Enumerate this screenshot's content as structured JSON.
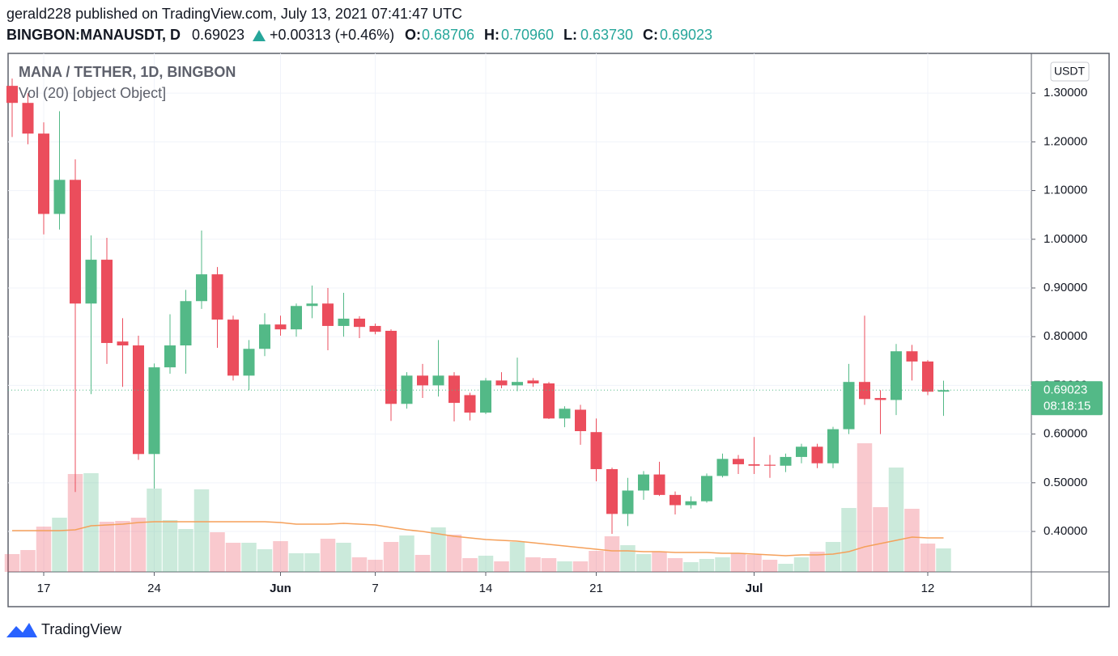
{
  "header": {
    "line1": "gerald228 published on TradingView.com, July 13, 2021 07:41:47 UTC",
    "symbol": "BINGBON:MANAUSDT, D",
    "last": "0.69023",
    "change": "+0.00313 (+0.46%)",
    "ohlc": [
      {
        "label": "O:",
        "value": "0.68706"
      },
      {
        "label": "H:",
        "value": "0.70960"
      },
      {
        "label": "L:",
        "value": "0.63730"
      },
      {
        "label": "C:",
        "value": "0.69023"
      }
    ]
  },
  "chart_data": {
    "type": "candlestick",
    "title": "MANA / TETHER, 1D, BINGBON",
    "indicator": "Vol (20) [object Object]",
    "currency": "USDT",
    "up_color": "#53b987",
    "down_color": "#eb4d5c",
    "ma_color": "#f5a05a",
    "grid": true,
    "x": [
      "05-15",
      "05-16",
      "05-17",
      "05-18",
      "05-19",
      "05-20",
      "05-21",
      "05-22",
      "05-23",
      "05-24",
      "05-25",
      "05-26",
      "05-27",
      "05-28",
      "05-29",
      "05-30",
      "05-31",
      "06-01",
      "06-02",
      "06-03",
      "06-04",
      "06-05",
      "06-06",
      "06-07",
      "06-08",
      "06-09",
      "06-10",
      "06-11",
      "06-12",
      "06-13",
      "06-14",
      "06-15",
      "06-16",
      "06-17",
      "06-18",
      "06-19",
      "06-20",
      "06-21",
      "06-22",
      "06-23",
      "06-24",
      "06-25",
      "06-26",
      "06-27",
      "06-28",
      "06-29",
      "06-30",
      "07-01",
      "07-02",
      "07-03",
      "07-04",
      "07-05",
      "07-06",
      "07-07",
      "07-08",
      "07-09",
      "07-10",
      "07-11",
      "07-12",
      "07-13"
    ],
    "open": [
      1.315,
      1.28,
      1.217,
      1.052,
      1.122,
      0.868,
      0.958,
      0.79,
      0.782,
      0.559,
      0.737,
      0.782,
      0.873,
      0.928,
      0.835,
      0.72,
      0.775,
      0.825,
      0.815,
      0.863,
      0.868,
      0.822,
      0.837,
      0.822,
      0.812,
      0.662,
      0.72,
      0.7,
      0.72,
      0.68,
      0.644,
      0.71,
      0.7,
      0.71,
      0.704,
      0.632,
      0.65,
      0.604,
      0.528,
      0.436,
      0.484,
      0.517,
      0.475,
      0.454,
      0.462,
      0.514,
      0.549,
      0.538,
      0.537,
      0.535,
      0.553,
      0.574,
      0.54,
      0.61,
      0.707,
      0.674,
      0.67,
      0.77,
      0.749,
      0.68706
    ],
    "high": [
      1.33,
      1.3,
      1.24,
      1.263,
      1.164,
      1.008,
      1.003,
      0.838,
      0.802,
      0.745,
      0.846,
      0.896,
      1.018,
      0.943,
      0.843,
      0.793,
      0.848,
      0.843,
      0.868,
      0.905,
      0.9,
      0.89,
      0.842,
      0.827,
      0.815,
      0.727,
      0.744,
      0.793,
      0.727,
      0.685,
      0.715,
      0.727,
      0.757,
      0.715,
      0.707,
      0.657,
      0.66,
      0.632,
      0.531,
      0.51,
      0.524,
      0.543,
      0.482,
      0.472,
      0.519,
      0.56,
      0.557,
      0.594,
      0.557,
      0.56,
      0.58,
      0.58,
      0.615,
      0.744,
      0.843,
      0.69,
      0.785,
      0.783,
      0.752,
      0.7096
    ],
    "low": [
      1.21,
      1.195,
      1.01,
      1.02,
      0.481,
      0.682,
      0.744,
      0.697,
      0.547,
      0.488,
      0.724,
      0.724,
      0.857,
      0.777,
      0.71,
      0.69,
      0.76,
      0.802,
      0.8,
      0.838,
      0.772,
      0.8,
      0.797,
      0.805,
      0.627,
      0.652,
      0.674,
      0.677,
      0.626,
      0.628,
      0.641,
      0.694,
      0.688,
      0.697,
      0.631,
      0.614,
      0.578,
      0.503,
      0.395,
      0.411,
      0.465,
      0.473,
      0.435,
      0.447,
      0.459,
      0.511,
      0.518,
      0.518,
      0.51,
      0.522,
      0.54,
      0.53,
      0.53,
      0.6,
      0.66,
      0.6,
      0.639,
      0.71,
      0.68,
      0.6373
    ],
    "close": [
      1.28,
      1.217,
      1.052,
      1.122,
      0.868,
      0.958,
      0.787,
      0.782,
      0.559,
      0.737,
      0.782,
      0.873,
      0.928,
      0.835,
      0.72,
      0.775,
      0.825,
      0.815,
      0.863,
      0.868,
      0.822,
      0.837,
      0.82,
      0.81,
      0.662,
      0.72,
      0.7,
      0.72,
      0.664,
      0.644,
      0.71,
      0.7,
      0.707,
      0.704,
      0.632,
      0.652,
      0.606,
      0.528,
      0.436,
      0.484,
      0.517,
      0.475,
      0.454,
      0.462,
      0.514,
      0.549,
      0.538,
      0.535,
      0.535,
      0.553,
      0.574,
      0.54,
      0.61,
      0.707,
      0.672,
      0.67,
      0.77,
      0.749,
      0.687,
      0.69023
    ],
    "volume": [
      22,
      27,
      56,
      67,
      121,
      122,
      62,
      63,
      67,
      103,
      64,
      53,
      102,
      49,
      36,
      36,
      28,
      38,
      23,
      23,
      41,
      36,
      18,
      15,
      37,
      45,
      21,
      55,
      46,
      17,
      20,
      13,
      37,
      18,
      17,
      13,
      13,
      26,
      44,
      33,
      22,
      25,
      17,
      12,
      16,
      18,
      23,
      21,
      15,
      10,
      18,
      25,
      37,
      79,
      159,
      80,
      129,
      78,
      35,
      29
    ],
    "volume_ma": [
      51,
      51,
      51,
      51,
      52,
      57,
      58,
      59,
      61,
      62,
      62,
      62,
      62,
      62,
      62,
      62,
      62,
      61,
      59,
      59,
      59,
      60,
      59,
      58,
      55,
      52,
      50,
      47,
      44,
      42,
      40,
      39,
      38,
      36,
      34,
      32,
      30,
      28,
      26,
      26,
      25,
      25,
      24,
      24,
      24,
      23,
      23,
      22,
      21,
      20,
      21,
      21,
      22,
      25,
      31,
      35,
      39,
      43,
      42,
      42
    ],
    "ylim": [
      0.317,
      1.38
    ],
    "yticks": [
      {
        "value": 1.3,
        "label": "1.30000"
      },
      {
        "value": 1.2,
        "label": "1.20000"
      },
      {
        "value": 1.1,
        "label": "1.10000"
      },
      {
        "value": 1.0,
        "label": "1.00000"
      },
      {
        "value": 0.9,
        "label": "0.90000"
      },
      {
        "value": 0.8,
        "label": "0.80000"
      },
      {
        "value": 0.7,
        "label": "0.70000"
      },
      {
        "value": 0.6,
        "label": "0.60000"
      },
      {
        "value": 0.5,
        "label": "0.50000"
      },
      {
        "value": 0.4,
        "label": "0.40000"
      }
    ],
    "xticks": [
      {
        "value": "05-17",
        "label": "17"
      },
      {
        "value": "05-24",
        "label": "24"
      },
      {
        "value": "06-01",
        "label": "Jun"
      },
      {
        "value": "06-07",
        "label": "7"
      },
      {
        "value": "06-14",
        "label": "14"
      },
      {
        "value": "06-21",
        "label": "21"
      },
      {
        "value": "07-01",
        "label": "Jul"
      },
      {
        "value": "07-12",
        "label": "12"
      }
    ],
    "last_price": 0.69023,
    "countdown": "08:18:15"
  },
  "footer": {
    "brand": "TradingView"
  }
}
